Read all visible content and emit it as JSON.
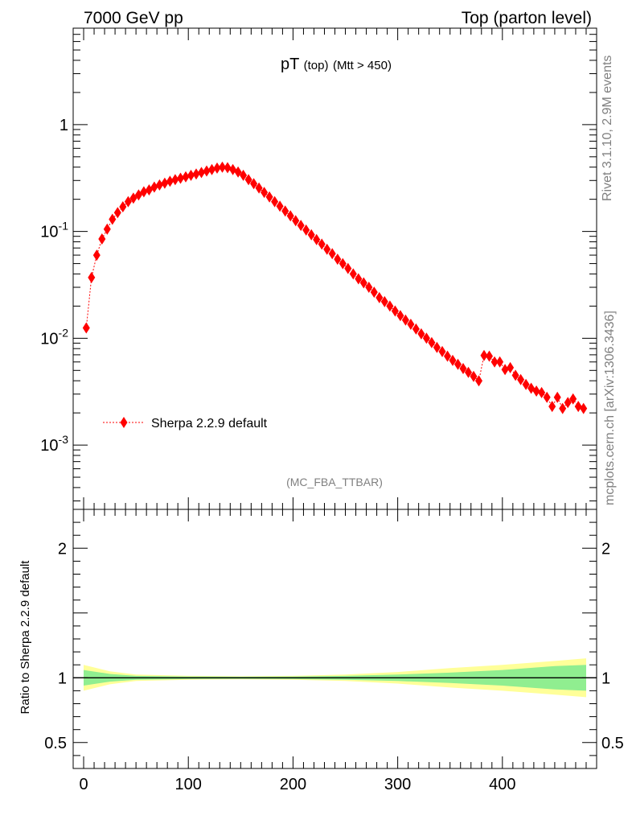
{
  "header": {
    "left": "7000 GeV pp",
    "right": "Top (parton level)"
  },
  "side": {
    "rivet": "Rivet 3.1.10,  2.9M events",
    "mcplots": "mcplots.cern.ch [arXiv:1306.3436]"
  },
  "plot_title": {
    "main": "pT",
    "sub1": "(top)",
    "sub2": "(Mtt > 450)"
  },
  "analysis_tag": "(MC_FBA_TTBAR)",
  "ratio_ylabel": "Ratio to Sherpa 2.2.9 default",
  "chart_data": [
    {
      "type": "scatter",
      "title": "pT (top) (Mtt > 450)",
      "xlabel": "",
      "ylabel": "",
      "yscale": "log",
      "xlim": [
        -10,
        490
      ],
      "ylim": [
        0.00025,
        8
      ],
      "ytick_labels": [
        "10^-3",
        "10^-2",
        "10^-1",
        "1"
      ],
      "legend": {
        "placement": "bottom-left",
        "entries": [
          "Sherpa 2.2.9 default"
        ]
      },
      "colors": {
        "series": "#ff0000"
      },
      "series": [
        {
          "name": "Sherpa 2.2.9 default",
          "x": [
            2.5,
            7.5,
            12.5,
            17.5,
            22.5,
            27.5,
            32.5,
            37.5,
            42.5,
            47.5,
            52.5,
            57.5,
            62.5,
            67.5,
            72.5,
            77.5,
            82.5,
            87.5,
            92.5,
            97.5,
            102.5,
            107.5,
            112.5,
            117.5,
            122.5,
            127.5,
            132.5,
            137.5,
            142.5,
            147.5,
            152.5,
            157.5,
            162.5,
            167.5,
            172.5,
            177.5,
            182.5,
            187.5,
            192.5,
            197.5,
            202.5,
            207.5,
            212.5,
            217.5,
            222.5,
            227.5,
            232.5,
            237.5,
            242.5,
            247.5,
            252.5,
            257.5,
            262.5,
            267.5,
            272.5,
            277.5,
            282.5,
            287.5,
            292.5,
            297.5,
            302.5,
            307.5,
            312.5,
            317.5,
            322.5,
            327.5,
            332.5,
            337.5,
            342.5,
            347.5,
            352.5,
            357.5,
            362.5,
            367.5,
            372.5,
            377.5,
            382.5,
            387.5,
            392.5,
            397.5,
            402.5,
            407.5,
            412.5,
            417.5,
            422.5,
            427.5,
            432.5,
            437.5,
            442.5,
            447.5,
            452.5,
            457.5,
            462.5,
            467.5,
            472.5,
            477.5
          ],
          "y": [
            0.0125,
            0.037,
            0.06,
            0.085,
            0.105,
            0.13,
            0.15,
            0.17,
            0.19,
            0.205,
            0.22,
            0.235,
            0.245,
            0.26,
            0.272,
            0.283,
            0.295,
            0.305,
            0.315,
            0.325,
            0.335,
            0.345,
            0.356,
            0.368,
            0.38,
            0.392,
            0.4,
            0.395,
            0.38,
            0.36,
            0.335,
            0.305,
            0.28,
            0.255,
            0.232,
            0.21,
            0.19,
            0.172,
            0.155,
            0.14,
            0.126,
            0.114,
            0.103,
            0.093,
            0.084,
            0.076,
            0.068,
            0.062,
            0.055,
            0.05,
            0.045,
            0.04,
            0.036,
            0.033,
            0.03,
            0.027,
            0.024,
            0.022,
            0.02,
            0.018,
            0.0163,
            0.0148,
            0.0135,
            0.0122,
            0.011,
            0.01,
            0.0091,
            0.0082,
            0.0075,
            0.0068,
            0.0062,
            0.0057,
            0.0052,
            0.0048,
            0.0044,
            0.004,
            0.0069,
            0.0068,
            0.006,
            0.006,
            0.0051,
            0.0053,
            0.0045,
            0.0041,
            0.0037,
            0.0034,
            0.0032,
            0.0031,
            0.0028,
            0.0023,
            0.0028,
            0.0022,
            0.0025,
            0.0027,
            0.0023,
            0.0022
          ]
        }
      ]
    },
    {
      "type": "area",
      "xlabel": "",
      "ylabel": "Ratio to Sherpa 2.2.9 default",
      "xlim": [
        -10,
        490
      ],
      "ylim": [
        0.3,
        2.3
      ],
      "xticks": [
        0,
        100,
        200,
        300,
        400
      ],
      "yticks": [
        0.5,
        1,
        2
      ],
      "reference_line": 1,
      "colors": {
        "stat_band": "#90ee90",
        "total_band": "#ffff99",
        "line": "#000000"
      },
      "bands": {
        "x": [
          0,
          25,
          50,
          100,
          150,
          200,
          250,
          300,
          350,
          400,
          450,
          480
        ],
        "inner_halfwidth": [
          0.06,
          0.03,
          0.015,
          0.01,
          0.008,
          0.01,
          0.015,
          0.025,
          0.04,
          0.06,
          0.09,
          0.1
        ],
        "outer_halfwidth": [
          0.1,
          0.05,
          0.025,
          0.015,
          0.012,
          0.015,
          0.025,
          0.045,
          0.075,
          0.1,
          0.13,
          0.15
        ]
      }
    }
  ]
}
